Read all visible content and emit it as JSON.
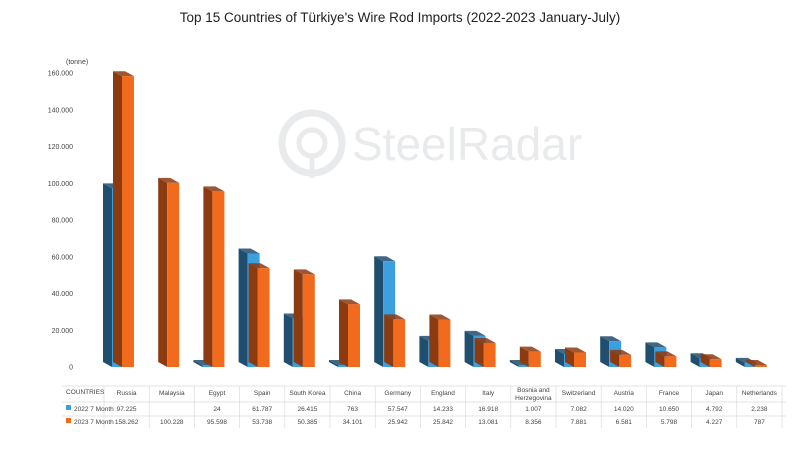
{
  "chart_data": {
    "type": "bar",
    "title": "Top 15 Countries of Türkiye's Wire Rod Imports (2022-2023 January-July)",
    "unit_label": "(tonne)",
    "table_header": "COUNTRIES",
    "watermark": "SteelRadar",
    "ylim": [
      0,
      160000
    ],
    "y_ticks": [
      "0",
      "20.000",
      "40.000",
      "60.000",
      "80.000",
      "100.000",
      "120.000",
      "140.000",
      "160.000"
    ],
    "categories": [
      "Russia",
      "Malaysia",
      "Egypt",
      "Spain",
      "South Korea",
      "China",
      "Germany",
      "England",
      "Italy",
      "Bosnia and Herzegovina",
      "Switzerland",
      "Austria",
      "France",
      "Japan",
      "Netherlands"
    ],
    "series": [
      {
        "name": "2022 7 Month",
        "color": "#3b9fe0",
        "side_color": "#1f4e6e",
        "values": [
          97225,
          null,
          24,
          61787,
          26415,
          763,
          57547,
          14233,
          16918,
          1007,
          7082,
          14020,
          10650,
          4792,
          2238
        ],
        "labels": [
          "97.225",
          "",
          "24",
          "61.787",
          "26.415",
          "763",
          "57.547",
          "14.233",
          "16.918",
          "1.007",
          "7.082",
          "14.020",
          "10.650",
          "4.792",
          "2.238"
        ]
      },
      {
        "name": "2023 7 Month",
        "color": "#f26b1d",
        "side_color": "#8c3a10",
        "values": [
          158262,
          100228,
          95598,
          53738,
          50385,
          34101,
          25942,
          25842,
          13081,
          8356,
          7881,
          6581,
          5798,
          4227,
          787
        ],
        "labels": [
          "158.262",
          "100.228",
          "95.598",
          "53.738",
          "50.385",
          "34.101",
          "25.942",
          "25.842",
          "13.081",
          "8.356",
          "7.881",
          "6.581",
          "5.798",
          "4.227",
          "787"
        ]
      }
    ]
  }
}
